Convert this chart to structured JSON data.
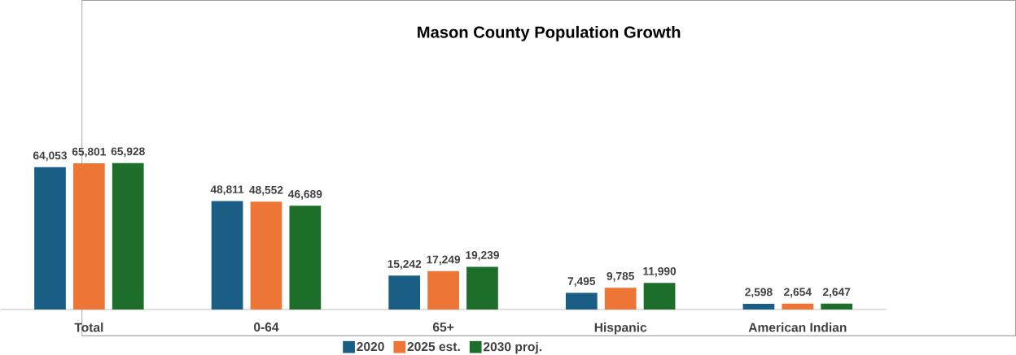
{
  "chart_data": {
    "type": "bar",
    "title": "Mason County Population Growth",
    "categories": [
      "Total",
      "0-64",
      "65+",
      "Hispanic",
      "American Indian"
    ],
    "series": [
      {
        "name": "2020",
        "color": "#1a5e85",
        "values": [
          64053,
          48811,
          15242,
          7495,
          2598
        ],
        "value_labels": [
          "64,053",
          "48,811",
          "15,242",
          "7,495",
          "2,598"
        ]
      },
      {
        "name": "2025 est.",
        "color": "#ed7535",
        "values": [
          65801,
          48552,
          17249,
          9785,
          2654
        ],
        "value_labels": [
          "65,801",
          "48,552",
          "17,249",
          "9,785",
          "2,654"
        ]
      },
      {
        "name": "2030 proj.",
        "color": "#1c6e2a",
        "values": [
          65928,
          46689,
          19239,
          11990,
          2647
        ],
        "value_labels": [
          "65,928",
          "46,689",
          "19,239",
          "11,990",
          "2,647"
        ]
      }
    ],
    "legend": "bottom"
  }
}
